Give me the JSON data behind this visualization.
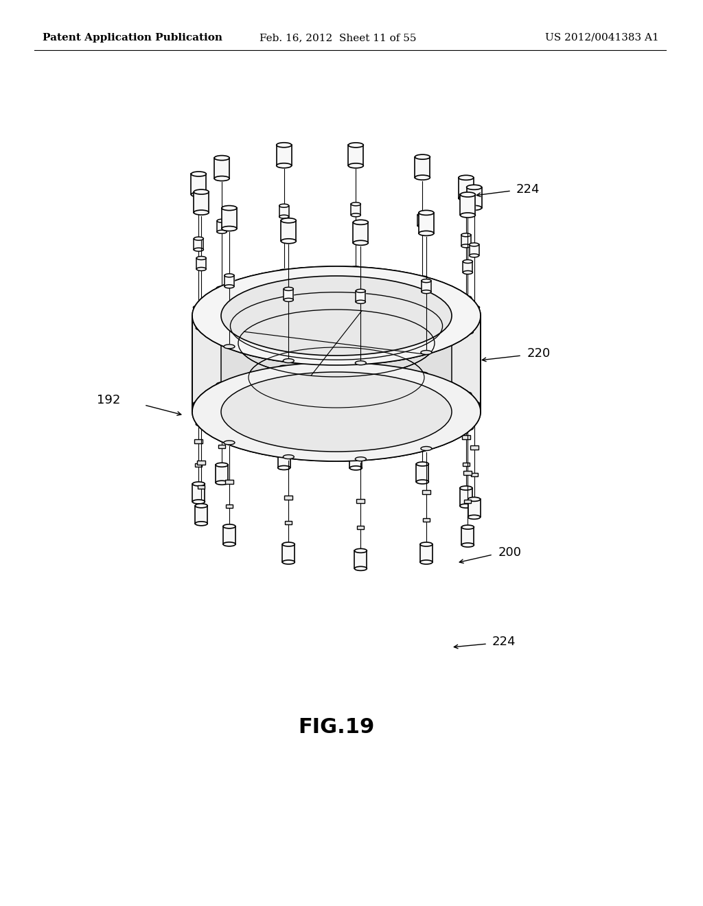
{
  "background_color": "#ffffff",
  "header_left": "Patent Application Publication",
  "header_mid": "Feb. 16, 2012  Sheet 11 of 55",
  "header_right": "US 2012/0041383 A1",
  "figure_label": "FIG.19",
  "label_192": "192",
  "label_220": "220",
  "label_224_top": "224",
  "label_224_bot": "224",
  "label_200": "200",
  "line_color": "#000000",
  "lw": 1.2,
  "header_fontsize": 11,
  "label_fontsize": 13,
  "fig_label_fontsize": 22
}
